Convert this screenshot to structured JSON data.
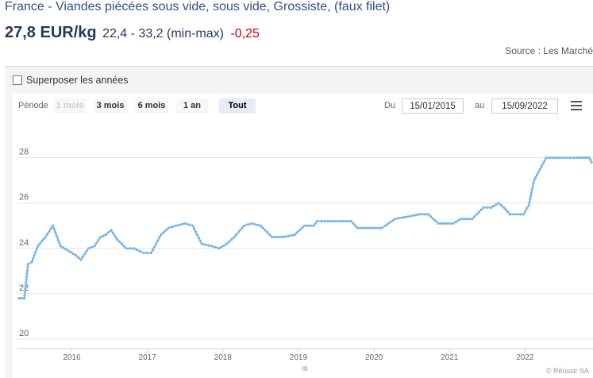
{
  "header": {
    "title": "France - Viandes piécées sous vide, sous vide, Grossiste, (faux filet)",
    "price": "27,8 EUR/kg",
    "range": "22,4 - 33,2 (min-max)",
    "delta": "-0,25",
    "source": "Source : Les Marché"
  },
  "controls": {
    "overlay_label": "Superposer les années",
    "period_label": "Période",
    "ranges": [
      "1 mois",
      "3 mois",
      "6 mois",
      "1 an",
      "Tout"
    ],
    "active_range": "Tout",
    "from_label": "Du",
    "from_date": "15/01/2015",
    "to_label": "au",
    "to_date": "15/09/2022"
  },
  "credits": "© Réussir SA",
  "navigator_handle": "III",
  "colors": {
    "line": "#7cb5ec",
    "grid": "#e6e6e6",
    "delta": "#cc0000",
    "title": "#2f4f8a"
  },
  "chart_data": {
    "type": "line",
    "title": "",
    "xlabel": "",
    "ylabel": "",
    "ylim": [
      20,
      29
    ],
    "xlim": [
      2015.28,
      2022.9
    ],
    "yticks": [
      "20",
      "22",
      "24",
      "26",
      "28"
    ],
    "xticks": [
      "2016",
      "2017",
      "2018",
      "2019",
      "2020",
      "2021",
      "2022"
    ],
    "grid": true,
    "x": [
      2015.3,
      2015.37,
      2015.42,
      2015.47,
      2015.55,
      2015.65,
      2015.75,
      2015.85,
      2015.95,
      2016.05,
      2016.12,
      2016.22,
      2016.3,
      2016.38,
      2016.45,
      2016.52,
      2016.6,
      2016.72,
      2016.82,
      2016.95,
      2017.05,
      2017.18,
      2017.28,
      2017.38,
      2017.5,
      2017.6,
      2017.72,
      2017.85,
      2017.95,
      2018.05,
      2018.15,
      2018.28,
      2018.38,
      2018.5,
      2018.65,
      2018.8,
      2018.95,
      2019.08,
      2019.2,
      2019.25,
      2019.35,
      2019.5,
      2019.55,
      2019.7,
      2019.78,
      2019.9,
      2020.1,
      2020.15,
      2020.28,
      2020.45,
      2020.6,
      2020.72,
      2020.85,
      2021.05,
      2021.15,
      2021.3,
      2021.45,
      2021.55,
      2021.65,
      2021.72,
      2021.8,
      2021.9,
      2021.98,
      2022.05,
      2022.12,
      2022.2,
      2022.28,
      2022.38,
      2022.5,
      2022.6,
      2022.7,
      2022.78,
      2022.85,
      2022.88
    ],
    "values": [
      21.8,
      21.8,
      23.3,
      23.4,
      24.1,
      24.5,
      25.0,
      24.1,
      23.9,
      23.7,
      23.5,
      24.0,
      24.1,
      24.5,
      24.6,
      24.8,
      24.4,
      24.0,
      24.0,
      23.8,
      23.8,
      24.6,
      24.9,
      25.0,
      25.1,
      25.0,
      24.2,
      24.1,
      24.0,
      24.2,
      24.5,
      25.0,
      25.1,
      25.0,
      24.5,
      24.5,
      24.6,
      25.0,
      25.0,
      25.2,
      25.2,
      25.2,
      25.2,
      25.2,
      24.9,
      24.9,
      24.9,
      25.0,
      25.3,
      25.4,
      25.5,
      25.5,
      25.1,
      25.1,
      25.3,
      25.3,
      25.8,
      25.8,
      26.0,
      25.8,
      25.5,
      25.5,
      25.5,
      25.9,
      27.0,
      27.5,
      28.0,
      28.0,
      28.0,
      28.0,
      28.0,
      28.0,
      28.0,
      27.8
    ]
  }
}
